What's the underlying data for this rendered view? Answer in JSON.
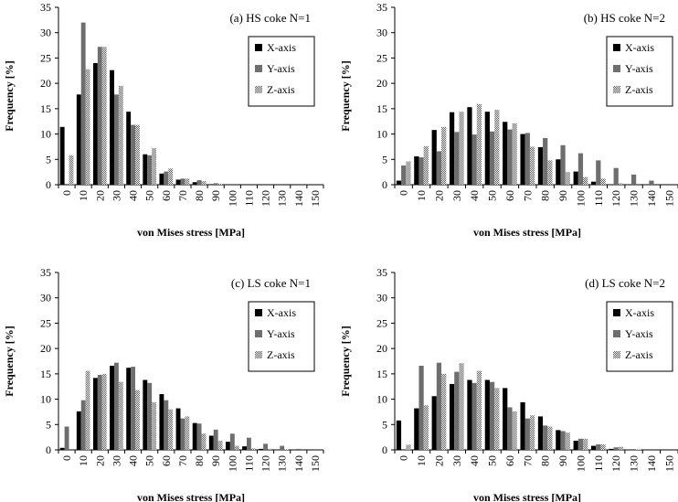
{
  "colors": {
    "x_axis": "#000000",
    "y_axis": "#6e6e6e",
    "z_axis_hatch_fg": "#5a5a5a",
    "z_axis_hatch_bg": "#ffffff",
    "frame": "#000000"
  },
  "chart_data": [
    {
      "type": "bar",
      "title": "(a) HS coke N=1",
      "xlabel": "von Mises stress  [MPa]",
      "ylabel": "Frequency [%]",
      "ylim": [
        0,
        35
      ],
      "yticks": [
        "0",
        "5",
        "10",
        "15",
        "20",
        "25",
        "30",
        "35"
      ],
      "categories": [
        "0",
        "10",
        "20",
        "30",
        "40",
        "50",
        "60",
        "70",
        "80",
        "90",
        "100",
        "110",
        "120",
        "130",
        "140",
        "150"
      ],
      "legend_position": "top-right",
      "grid": false,
      "series": [
        {
          "name": "X-axis",
          "values": [
            11.4,
            17.8,
            24,
            22.6,
            14.4,
            6,
            2.2,
            1,
            0.5,
            0.1,
            0,
            0,
            0,
            0,
            0,
            0
          ]
        },
        {
          "name": "Y-axis",
          "values": [
            0,
            32,
            27.2,
            17.8,
            11.8,
            5.8,
            2.6,
            1.2,
            0.9,
            0.3,
            0,
            0,
            0,
            0,
            0,
            0
          ]
        },
        {
          "name": "Z-axis",
          "values": [
            5.8,
            22.8,
            27.2,
            19.5,
            11.8,
            7.2,
            3.2,
            1.2,
            0.7,
            0.2,
            0,
            0,
            0,
            0,
            0,
            0
          ]
        }
      ]
    },
    {
      "type": "bar",
      "title": "(b) HS coke N=2",
      "xlabel": "von Mises stress  [MPa]",
      "ylabel": "Frequency [%]",
      "ylim": [
        0,
        35
      ],
      "yticks": [
        "0",
        "5",
        "10",
        "15",
        "20",
        "25",
        "30",
        "35"
      ],
      "categories": [
        "0",
        "10",
        "20",
        "30",
        "40",
        "50",
        "60",
        "70",
        "80",
        "90",
        "100",
        "110",
        "120",
        "130",
        "140",
        "150"
      ],
      "legend_position": "top-right",
      "grid": false,
      "series": [
        {
          "name": "X-axis",
          "values": [
            0.8,
            5.6,
            10.8,
            14.3,
            15.3,
            14.4,
            12.4,
            10,
            7.4,
            5,
            2.6,
            0.6,
            0,
            0,
            0,
            0
          ]
        },
        {
          "name": "Y-axis",
          "values": [
            3.8,
            5.4,
            6.6,
            10.4,
            9.9,
            10.5,
            10.9,
            10.2,
            9.2,
            7.8,
            6.2,
            4.8,
            3.3,
            2,
            0.8,
            0
          ]
        },
        {
          "name": "Z-axis",
          "values": [
            4.6,
            7.6,
            11.4,
            14.4,
            15.9,
            14.8,
            12.1,
            7.5,
            4.8,
            2.5,
            1.5,
            1.2,
            0.3,
            0,
            0,
            0
          ]
        }
      ]
    },
    {
      "type": "bar",
      "title": "(c) LS coke N=1",
      "xlabel": "von Mises stress  [MPa]",
      "ylabel": "Frequency [%]",
      "ylim": [
        0,
        35
      ],
      "yticks": [
        "0",
        "5",
        "10",
        "15",
        "20",
        "25",
        "30",
        "35"
      ],
      "categories": [
        "0",
        "10",
        "20",
        "30",
        "40",
        "50",
        "60",
        "70",
        "80",
        "90",
        "100",
        "110",
        "120",
        "130",
        "140",
        "150"
      ],
      "legend_position": "top-right",
      "grid": false,
      "series": [
        {
          "name": "X-axis",
          "values": [
            0.4,
            7.6,
            14.2,
            16.6,
            16.2,
            13.8,
            11,
            8.2,
            5.3,
            2.8,
            1.6,
            0.7,
            0.2,
            0,
            0,
            0
          ]
        },
        {
          "name": "Y-axis",
          "values": [
            4.6,
            9.8,
            14.8,
            17.2,
            16.4,
            13.2,
            9.8,
            6.2,
            5.2,
            4,
            3.2,
            2.4,
            1.2,
            0.8,
            0.2,
            0
          ]
        },
        {
          "name": "Z-axis",
          "values": [
            0,
            15.6,
            15,
            13.4,
            11.8,
            9.4,
            8,
            6.6,
            3.2,
            1.8,
            0.8,
            0.3,
            0.2,
            0.1,
            0,
            0
          ]
        }
      ]
    },
    {
      "type": "bar",
      "title": "(d) LS coke N=2",
      "xlabel": "von Mises stress  [MPa]",
      "ylabel": "Frequency [%]",
      "ylim": [
        0,
        35
      ],
      "yticks": [
        "0",
        "5",
        "10",
        "15",
        "20",
        "25",
        "30",
        "35"
      ],
      "categories": [
        "0",
        "10",
        "20",
        "30",
        "40",
        "50",
        "60",
        "70",
        "80",
        "90",
        "100",
        "110",
        "120",
        "130",
        "140",
        "150"
      ],
      "legend_position": "top-right",
      "grid": false,
      "series": [
        {
          "name": "X-axis",
          "values": [
            5.8,
            8.2,
            10.6,
            13,
            13.8,
            13.8,
            12.2,
            9.4,
            6.6,
            3.9,
            1.8,
            0.8,
            0.2,
            0,
            0,
            0
          ]
        },
        {
          "name": "Y-axis",
          "values": [
            0,
            16.6,
            17.2,
            15.4,
            13.2,
            13.4,
            8.4,
            6.2,
            4.8,
            3.7,
            2.2,
            1.1,
            0.5,
            0,
            0,
            0
          ]
        },
        {
          "name": "Z-axis",
          "values": [
            1,
            8.8,
            15,
            17.1,
            15.6,
            12.2,
            7.6,
            6.8,
            4.6,
            3.4,
            2.2,
            1.1,
            0.6,
            0.1,
            0,
            0
          ]
        }
      ]
    }
  ]
}
